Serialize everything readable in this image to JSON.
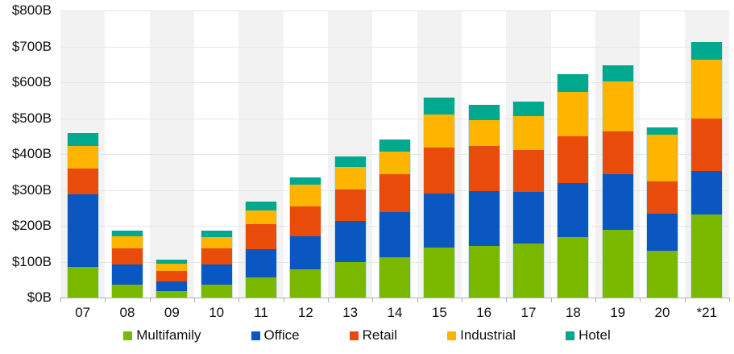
{
  "chart_data": {
    "type": "bar",
    "variant": "stacked-vertical",
    "title": "",
    "unit": "billions USD",
    "categories": [
      "07",
      "08",
      "09",
      "10",
      "11",
      "12",
      "13",
      "14",
      "15",
      "16",
      "17",
      "18",
      "19",
      "20",
      "*21"
    ],
    "series": [
      {
        "name": "Multifamily",
        "color": "#7ab800",
        "values": [
          85,
          36,
          17,
          35,
          56,
          79,
          99,
          113,
          140,
          144,
          151,
          169,
          188,
          130,
          231
        ]
      },
      {
        "name": "Office",
        "color": "#0a57c2",
        "values": [
          202,
          57,
          27,
          58,
          79,
          92,
          115,
          126,
          149,
          152,
          143,
          149,
          155,
          104,
          122
        ]
      },
      {
        "name": "Retail",
        "color": "#e94b0a",
        "values": [
          72,
          43,
          31,
          44,
          69,
          84,
          88,
          104,
          130,
          127,
          117,
          131,
          119,
          90,
          145
        ]
      },
      {
        "name": "Industrial",
        "color": "#ffb400",
        "values": [
          63,
          34,
          20,
          32,
          38,
          59,
          61,
          63,
          90,
          72,
          95,
          124,
          141,
          129,
          166
        ]
      },
      {
        "name": "Hotel",
        "color": "#00a98e",
        "values": [
          36,
          16,
          10,
          17,
          26,
          20,
          31,
          35,
          48,
          42,
          41,
          49,
          45,
          21,
          48
        ]
      }
    ],
    "totals": [
      458,
      186,
      105,
      186,
      268,
      334,
      394,
      441,
      557,
      537,
      547,
      622,
      648,
      474,
      712
    ],
    "y_axis": {
      "min": 0,
      "max": 800,
      "step": 100,
      "tick_labels": [
        "$0B",
        "$100B",
        "$200B",
        "$300B",
        "$400B",
        "$500B",
        "$600B",
        "$700B",
        "$800B"
      ]
    },
    "x_axis": {
      "tick_labels": [
        "07",
        "08",
        "09",
        "10",
        "11",
        "12",
        "13",
        "14",
        "15",
        "16",
        "17",
        "18",
        "19",
        "20",
        "*21"
      ]
    },
    "grid": true,
    "background_bands": "alternating-gray-white",
    "legend_position": "bottom"
  },
  "colors": {
    "band_gray": "#f2f2f2",
    "gridline": "#e6e6e6",
    "axis_line": "#aeaeae",
    "text": "#111111"
  }
}
